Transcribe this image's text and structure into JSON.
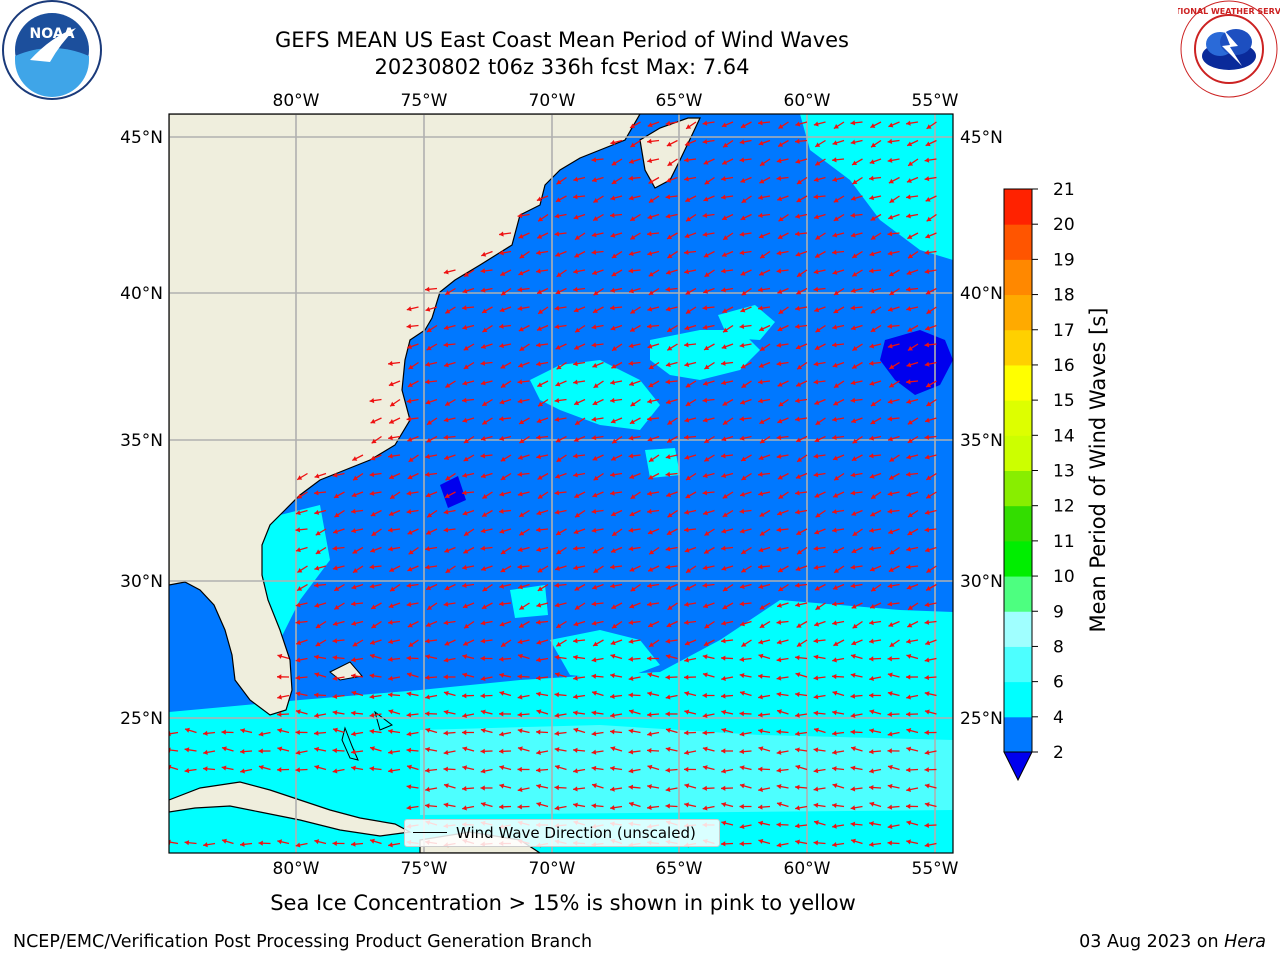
{
  "header": {
    "title_line1": "GEFS MEAN US East Coast Mean Period of Wind Waves",
    "title_line2": "20230802 t06z 336h fcst   Max: 7.64"
  },
  "logos": {
    "left": "NOAA",
    "right": "NATIONAL WEATHER SERVICE"
  },
  "map": {
    "lon_ticks": [
      "80°W",
      "75°W",
      "70°W",
      "65°W",
      "60°W",
      "55°W"
    ],
    "lat_ticks": [
      "45°N",
      "40°N",
      "35°N",
      "30°N",
      "25°N"
    ],
    "colors": {
      "land": "#efeedd",
      "ocean_low": "#0078ff",
      "ocean_high": "#00ffff",
      "ocean_bright": "#4dffff",
      "ocean_deep": "#0000ee",
      "arrow": "#ee1111",
      "grid": "#b0b0b0"
    },
    "legend_label": "Wind Wave Direction (unscaled)"
  },
  "colorbar": {
    "title": "Mean Period of Wind Waves [s]",
    "levels": [
      "2",
      "4",
      "6",
      "8",
      "9",
      "10",
      "11",
      "12",
      "13",
      "14",
      "15",
      "16",
      "17",
      "18",
      "19",
      "20",
      "21"
    ],
    "colors": [
      "#0078ff",
      "#00ffff",
      "#4dffff",
      "#a0ffff",
      "#4dff80",
      "#00ee00",
      "#33dd00",
      "#88ee00",
      "#ccff00",
      "#ddff00",
      "#ffff00",
      "#ffd000",
      "#ffaa00",
      "#ff8800",
      "#ff5500",
      "#ff2200"
    ],
    "under_color": "#0000ee"
  },
  "footer": {
    "ice_note": "Sea Ice Concentration > 15% is shown in pink to yellow",
    "branch": "NCEP/EMC/Verification Post Processing Product Generation Branch",
    "date": "03 Aug 2023 on ",
    "machine": "Hera"
  }
}
